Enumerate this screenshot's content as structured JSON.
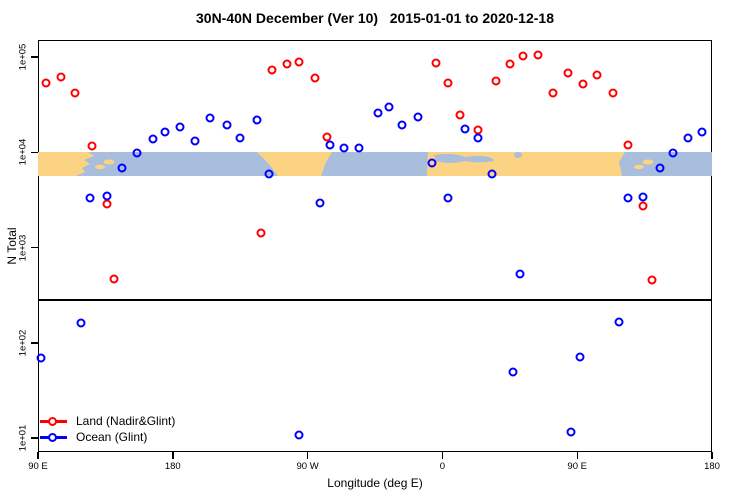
{
  "title": "30N-40N December (Ver 10)   2015-01-01 to 2020-12-18",
  "legend": {
    "items": [
      {
        "label": "Land (Nadir&Glint)",
        "color": "#ff0000"
      },
      {
        "label": "Ocean (Glint)",
        "color": "#0000ff"
      }
    ]
  },
  "chart_data": {
    "type": "scatter",
    "title": "30N-40N December (Ver 10)   2015-01-01 to 2020-12-18",
    "xlabel": "Longitude (deg E)",
    "ylabel": "N Total",
    "y_scale": "log10",
    "ylim": [
      7,
      150000
    ],
    "x_axis": {
      "range_deg": [
        90,
        540
      ],
      "note_span": "x axis spans 450 degrees of longitude, wrapping past 360",
      "ticks": [
        {
          "deg": 90,
          "label": "90 E"
        },
        {
          "deg": 180,
          "label": "180"
        },
        {
          "deg": 270,
          "label": "90 W"
        },
        {
          "deg": 360,
          "label": "0"
        },
        {
          "deg": 450,
          "label": "90 E"
        },
        {
          "deg": 540,
          "label": "180"
        }
      ]
    },
    "y_axis": {
      "ticks": [
        {
          "value": 100000,
          "label": "1e+05"
        },
        {
          "value": 10000,
          "label": "1e+04"
        },
        {
          "value": 1000,
          "label": "1e+03"
        },
        {
          "value": 100,
          "label": "1e+02"
        },
        {
          "value": 10,
          "label": "1e+01"
        }
      ]
    },
    "threshold_line": {
      "value": 280
    },
    "map_band": {
      "description": "strip map of the 30N-40N latitude band drawn across the plot",
      "value_top": 10000,
      "value_bottom": 5600,
      "land_color": "#fbd383",
      "ocean_color": "#a8bedc"
    },
    "series": [
      {
        "name": "Land (Nadir&Glint)",
        "color": "#ff0000",
        "points": [
          [
            95,
            53000
          ],
          [
            105,
            62000
          ],
          [
            115,
            42000
          ],
          [
            126,
            11600
          ],
          [
            136,
            2860
          ],
          [
            141,
            470
          ],
          [
            239,
            1420
          ],
          [
            246,
            73000
          ],
          [
            256,
            84000
          ],
          [
            264,
            89000
          ],
          [
            275,
            60000
          ],
          [
            283,
            14500
          ],
          [
            356,
            86000
          ],
          [
            364,
            53000
          ],
          [
            372,
            24600
          ],
          [
            384,
            17100
          ],
          [
            396,
            56000
          ],
          [
            405,
            84000
          ],
          [
            414,
            103000
          ],
          [
            424,
            105000
          ],
          [
            434,
            42000
          ],
          [
            444,
            68000
          ],
          [
            454,
            52000
          ],
          [
            463,
            65000
          ],
          [
            474,
            42000
          ],
          [
            484,
            11900
          ],
          [
            494,
            2730
          ],
          [
            500,
            456
          ]
        ]
      },
      {
        "name": "Ocean (Glint)",
        "color": "#0000ff",
        "points": [
          [
            92,
            69
          ],
          [
            119,
            161
          ],
          [
            125,
            3310
          ],
          [
            136,
            3480
          ],
          [
            146,
            6840
          ],
          [
            156,
            9820
          ],
          [
            167,
            13800
          ],
          [
            175,
            16300
          ],
          [
            185,
            18400
          ],
          [
            195,
            13100
          ],
          [
            205,
            22900
          ],
          [
            216,
            19300
          ],
          [
            225,
            14100
          ],
          [
            236,
            21800
          ],
          [
            244,
            5900
          ],
          [
            264,
            10.8
          ],
          [
            278,
            2930
          ],
          [
            285,
            11900
          ],
          [
            294,
            11100
          ],
          [
            304,
            11100
          ],
          [
            317,
            25800
          ],
          [
            324,
            29900
          ],
          [
            333,
            19300
          ],
          [
            344,
            23400
          ],
          [
            353,
            7700
          ],
          [
            364,
            3310
          ],
          [
            375,
            17500
          ],
          [
            384,
            14100
          ],
          [
            393,
            5900
          ],
          [
            407,
            49
          ],
          [
            412,
            527
          ],
          [
            446,
            11.6
          ],
          [
            452,
            71
          ],
          [
            478,
            165
          ],
          [
            484,
            3310
          ],
          [
            494,
            3400
          ],
          [
            505,
            6840
          ],
          [
            514,
            9820
          ],
          [
            524,
            14100
          ],
          [
            533,
            16300
          ]
        ]
      }
    ]
  }
}
